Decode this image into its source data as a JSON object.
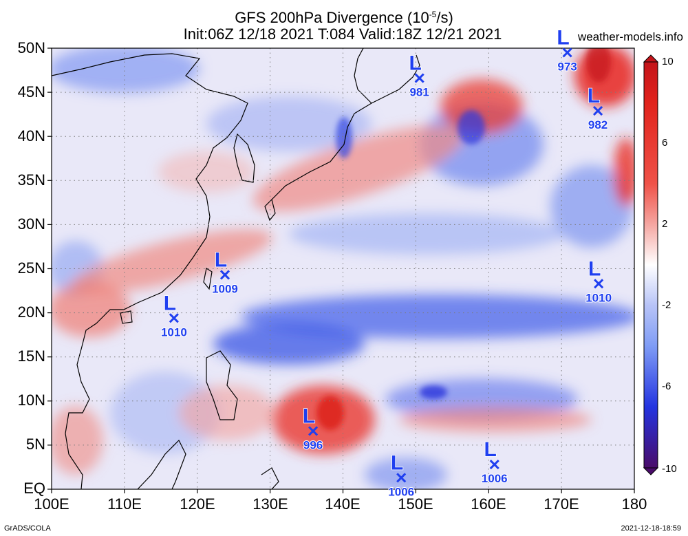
{
  "map": {
    "title": "GFS 200hPa Divergence (10",
    "title_exp": "-5",
    "title_suffix": "/s)",
    "subtitle": "Init:06Z 12/18 2021 T:084 Valid:18Z 12/21 2021",
    "watermark": "weather-models.info",
    "footer_left": "GrADS/COLA",
    "footer_right": "2021-12-18-18:59",
    "lat_labels": [
      "50N",
      "45N",
      "40N",
      "35N",
      "30N",
      "25N",
      "20N",
      "15N",
      "10N",
      "5N",
      "EQ"
    ],
    "lon_labels": [
      "100E",
      "110E",
      "120E",
      "130E",
      "140E",
      "150E",
      "160E",
      "170E",
      "180"
    ],
    "colorbar": {
      "labels": [
        "10",
        "6",
        "2",
        "-2",
        "-6",
        "-10"
      ],
      "colors": [
        "#5a0a55",
        "#1c10c8",
        "#3a57f0",
        "#7f9cf5",
        "#bfcaf7",
        "#ffffff",
        "#f5b9b6",
        "#f07a72",
        "#ea2a20",
        "#c4141a"
      ]
    },
    "lows": [
      {
        "label": "L",
        "pressure": "973",
        "lat": 49.5,
        "lon": 170.8
      },
      {
        "label": "L",
        "pressure": "981",
        "lat": 46.6,
        "lon": 150.5
      },
      {
        "label": "L",
        "pressure": "982",
        "lat": 42.9,
        "lon": 175.0
      },
      {
        "label": "L",
        "pressure": "1009",
        "lat": 24.3,
        "lon": 123.8
      },
      {
        "label": "L",
        "pressure": "1010",
        "lat": 19.4,
        "lon": 116.8
      },
      {
        "label": "L",
        "pressure": "1010",
        "lat": 23.3,
        "lon": 175.1
      },
      {
        "label": "L",
        "pressure": "996",
        "lat": 6.6,
        "lon": 135.9
      },
      {
        "label": "L",
        "pressure": "1006",
        "lat": 1.3,
        "lon": 148.0
      },
      {
        "label": "L",
        "pressure": "1006",
        "lat": 2.8,
        "lon": 160.8
      }
    ],
    "colors": {
      "low_marker": "#1f3ff0",
      "positive": "#ea2a20",
      "negative": "#2d44e6"
    }
  }
}
